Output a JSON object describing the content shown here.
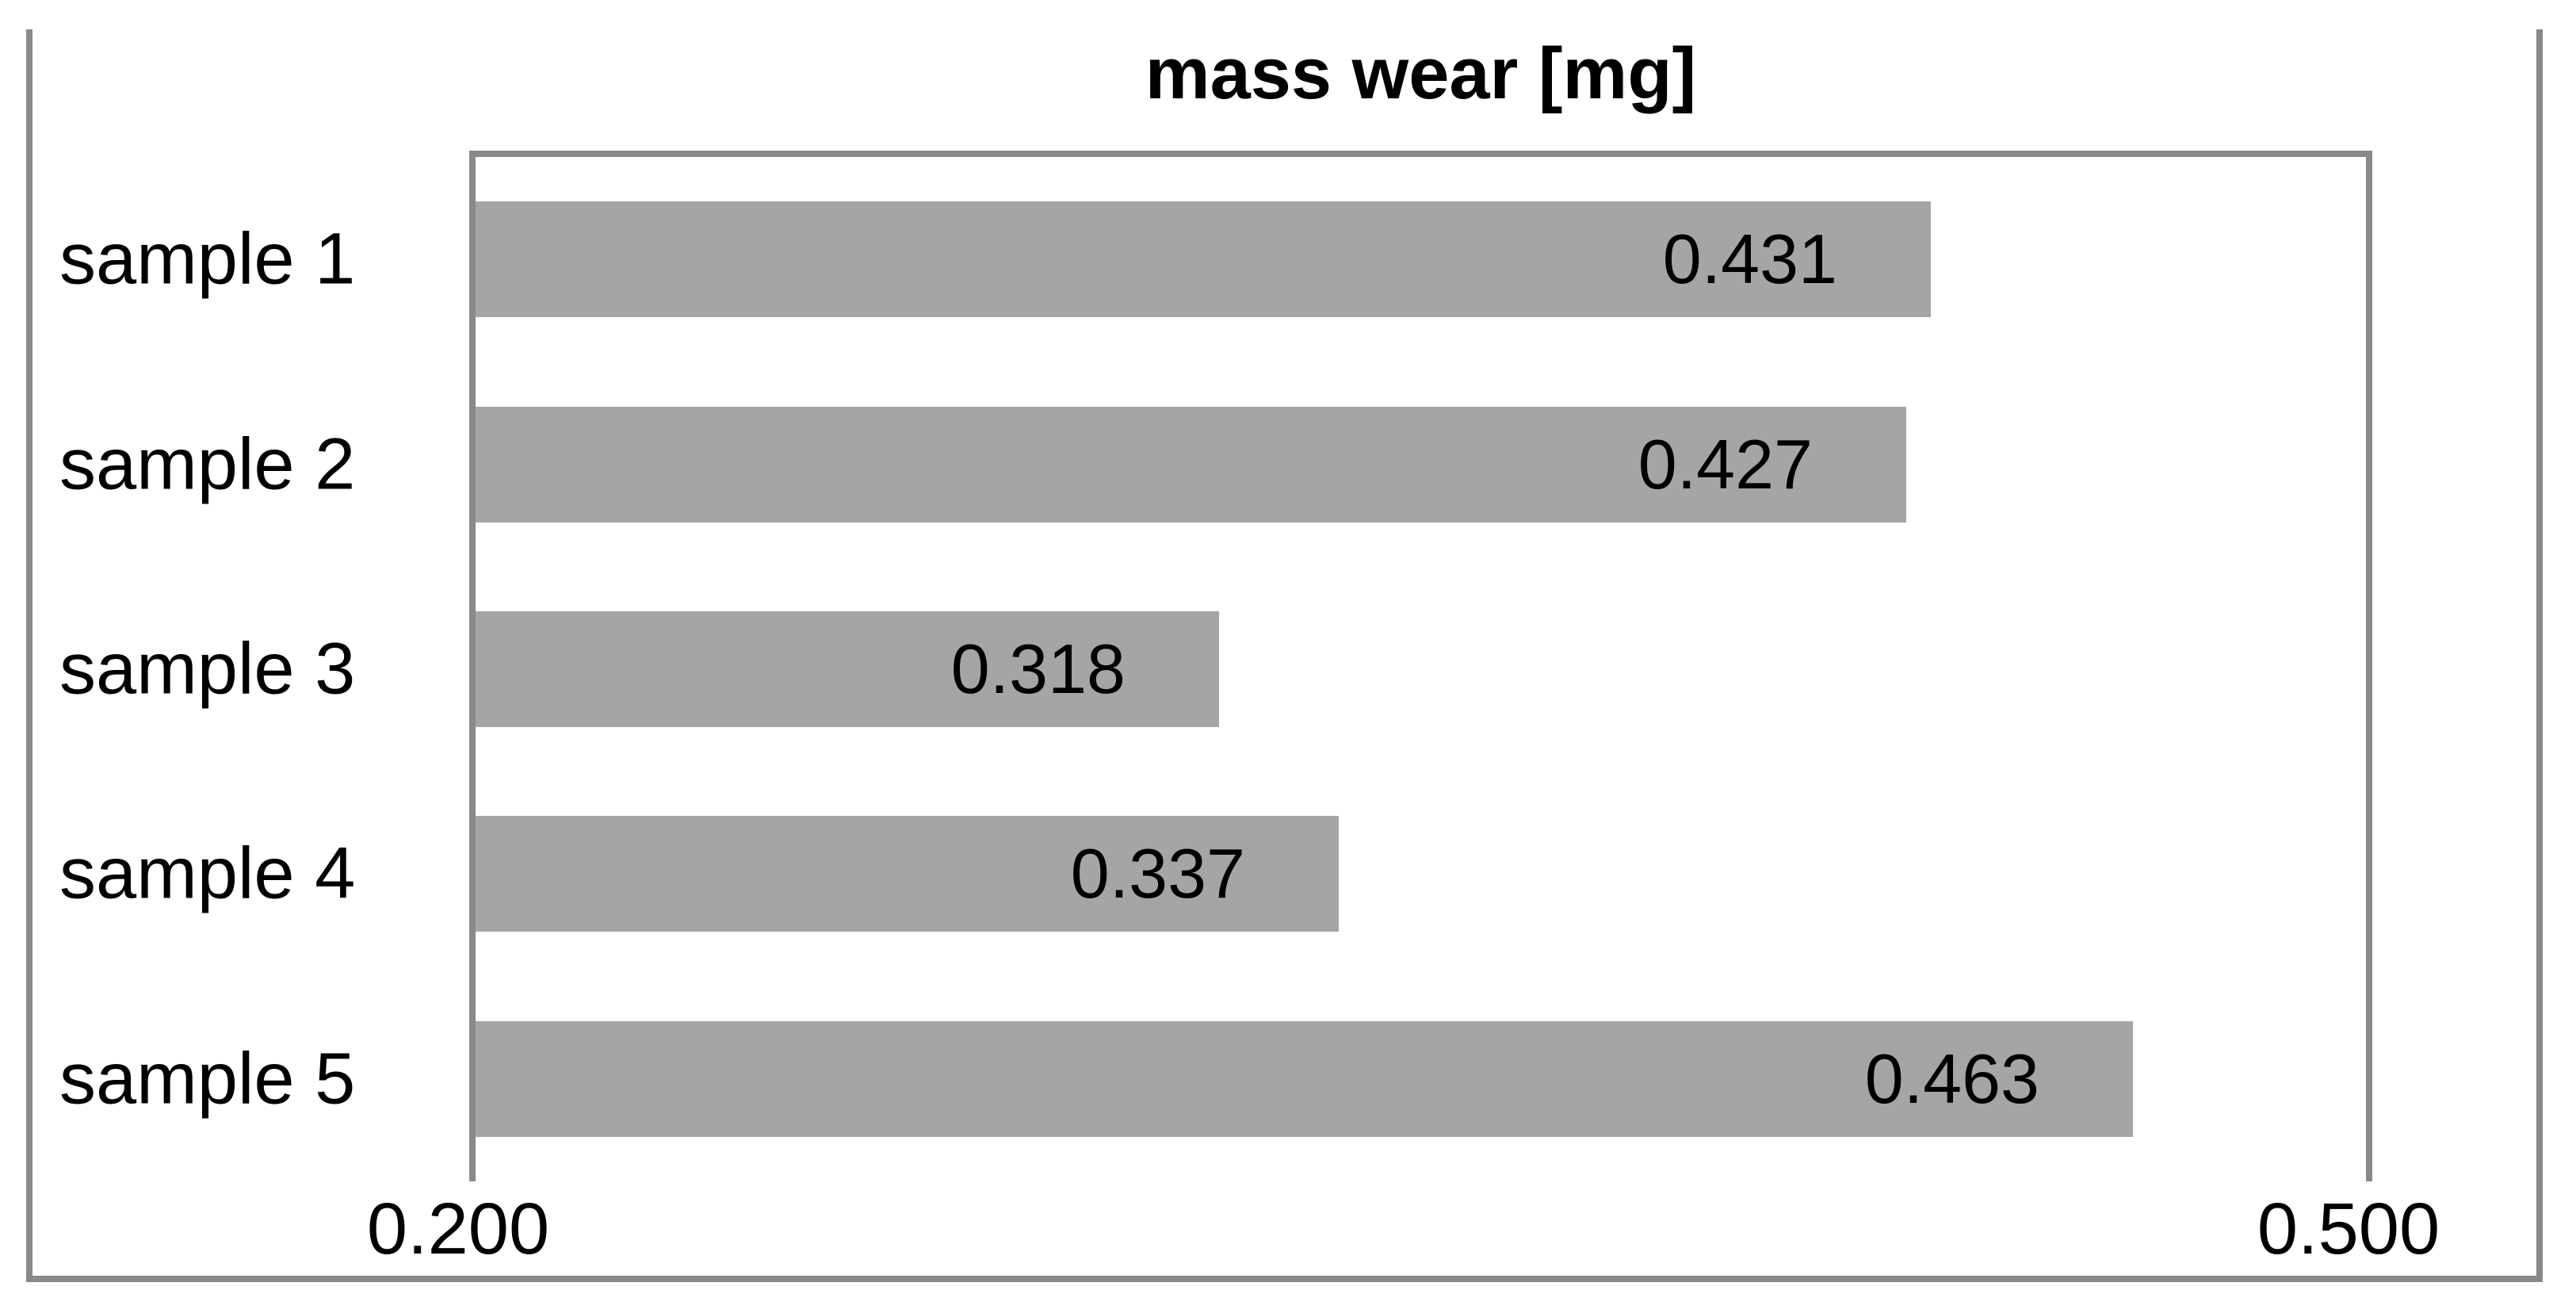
{
  "chart_data": {
    "type": "bar",
    "orientation": "horizontal",
    "title": "mass wear [mg]",
    "categories": [
      "sample 1",
      "sample 2",
      "sample 3",
      "sample 4",
      "sample 5"
    ],
    "values": [
      0.431,
      0.427,
      0.318,
      0.337,
      0.463
    ],
    "data_labels": [
      "0.431",
      "0.427",
      "0.318",
      "0.337",
      "0.463"
    ],
    "xlabel": "",
    "ylabel": "",
    "xlim": [
      0.2,
      0.5
    ],
    "x_tick_labels": [
      "0.200",
      "0.500"
    ],
    "x_tick_values": [
      0.2,
      0.5
    ],
    "grid": "off",
    "legend": "none",
    "colors": {
      "bar_fill": "#a5a5a5",
      "frame_line": "#898989",
      "text": "#000000",
      "background": "#ffffff"
    }
  }
}
